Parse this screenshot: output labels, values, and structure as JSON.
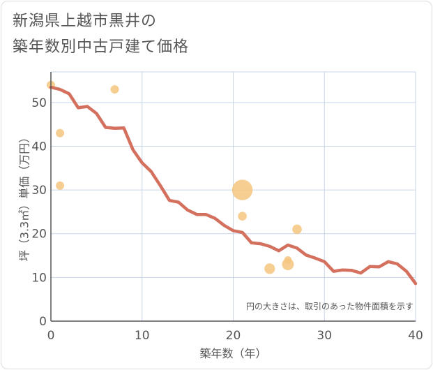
{
  "title": "新潟県上越市黒井の\n築年数別中古戸建て価格",
  "chart_data": {
    "type": "scatter+line",
    "xlabel": "築年数（年）",
    "ylabel": "坪（3.3㎡）単価（万円）",
    "xlim": [
      0,
      40
    ],
    "ylim": [
      0,
      57
    ],
    "xticks": [
      0,
      10,
      20,
      30,
      40
    ],
    "yticks": [
      0,
      10,
      20,
      30,
      40,
      50
    ],
    "grid": true,
    "note": "円の大きさは、取引のあった物件面積を示す",
    "colors": {
      "line": "#d4705e",
      "bubble": "#f5c57f",
      "grid": "#c8d6e8",
      "axis": "#555555"
    },
    "scatter": [
      {
        "x": 0,
        "y": 54,
        "size": 1
      },
      {
        "x": 1,
        "y": 43,
        "size": 1
      },
      {
        "x": 1,
        "y": 31,
        "size": 1
      },
      {
        "x": 7,
        "y": 53,
        "size": 1
      },
      {
        "x": 21,
        "y": 30,
        "size": 6
      },
      {
        "x": 21,
        "y": 24,
        "size": 1.1
      },
      {
        "x": 24,
        "y": 12,
        "size": 1.6
      },
      {
        "x": 26,
        "y": 13,
        "size": 2
      },
      {
        "x": 26,
        "y": 14,
        "size": 0.8
      },
      {
        "x": 27,
        "y": 21,
        "size": 1.3
      }
    ],
    "line": {
      "x": [
        0,
        1,
        2,
        3,
        4,
        5,
        6,
        7,
        8,
        9,
        10,
        11,
        12,
        13,
        14,
        15,
        16,
        17,
        18,
        19,
        20,
        21,
        22,
        23,
        24,
        25,
        26,
        27,
        28,
        29,
        30,
        31,
        32,
        33,
        34,
        35,
        36,
        37,
        38,
        39,
        40
      ],
      "y": [
        53.5,
        53,
        52,
        48.8,
        49.1,
        47.5,
        44.3,
        44.1,
        44.2,
        39.2,
        36.2,
        34.2,
        31,
        27.6,
        27.2,
        25.4,
        24.4,
        24.4,
        23.5,
        21.9,
        20.7,
        20.3,
        17.9,
        17.7,
        17.1,
        16.1,
        17.4,
        16.7,
        15.1,
        14.4,
        13.6,
        11.4,
        11.7,
        11.6,
        11,
        12.5,
        12.4,
        13.6,
        13.1,
        11.4,
        8.6
      ]
    }
  }
}
